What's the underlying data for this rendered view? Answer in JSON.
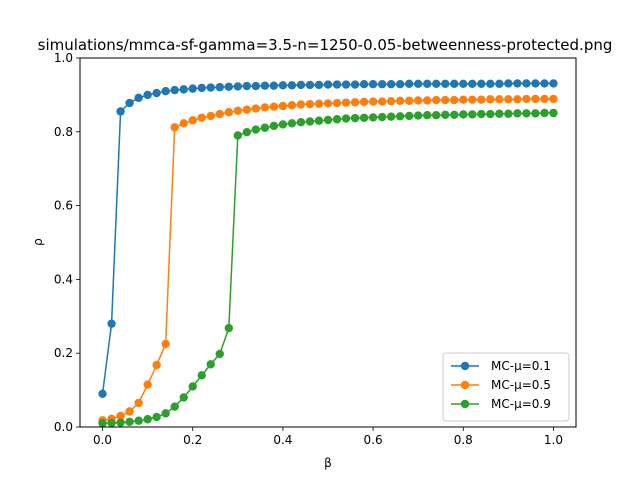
{
  "chart_data": {
    "type": "line",
    "title": "simulations/mmca-sf-gamma=3.5-n=1250-0.05-betweenness-protected.png",
    "xlabel": "β",
    "ylabel": "ρ",
    "xlim": [
      -0.05,
      1.05
    ],
    "ylim": [
      0,
      1
    ],
    "xticks": [
      0.0,
      0.2,
      0.4,
      0.6,
      0.8,
      1.0
    ],
    "xtick_labels": [
      "0.0",
      "0.2",
      "0.4",
      "0.6",
      "0.8",
      "1.0"
    ],
    "yticks": [
      0.0,
      0.2,
      0.4,
      0.6,
      0.8,
      1.0
    ],
    "ytick_labels": [
      "0.0",
      "0.2",
      "0.4",
      "0.6",
      "0.8",
      "1.0"
    ],
    "grid": false,
    "legend_position": "lower right",
    "x": [
      0,
      0.02,
      0.04,
      0.06,
      0.08,
      0.1,
      0.12,
      0.14,
      0.16,
      0.18,
      0.2,
      0.22,
      0.24,
      0.26,
      0.28,
      0.3,
      0.32,
      0.34,
      0.36,
      0.38,
      0.4,
      0.42,
      0.44,
      0.46,
      0.48,
      0.5,
      0.52,
      0.54,
      0.56,
      0.58,
      0.6,
      0.62,
      0.64,
      0.66,
      0.68,
      0.7,
      0.72,
      0.74,
      0.76,
      0.78,
      0.8,
      0.82,
      0.84,
      0.86,
      0.88,
      0.9,
      0.92,
      0.94,
      0.96,
      0.98,
      1.0
    ],
    "series": [
      {
        "name": "MC-μ=0.1",
        "color": "#1f77b4",
        "values": [
          0.09,
          0.28,
          0.855,
          0.878,
          0.892,
          0.9,
          0.905,
          0.91,
          0.913,
          0.915,
          0.917,
          0.919,
          0.92,
          0.921,
          0.922,
          0.923,
          0.924,
          0.924,
          0.925,
          0.925,
          0.926,
          0.926,
          0.927,
          0.927,
          0.927,
          0.928,
          0.928,
          0.928,
          0.928,
          0.929,
          0.929,
          0.929,
          0.929,
          0.929,
          0.93,
          0.93,
          0.93,
          0.93,
          0.93,
          0.93,
          0.93,
          0.93,
          0.93,
          0.93,
          0.93,
          0.931,
          0.931,
          0.931,
          0.931,
          0.931,
          0.931
        ]
      },
      {
        "name": "MC-μ=0.5",
        "color": "#ff7f0e",
        "values": [
          0.018,
          0.022,
          0.03,
          0.042,
          0.065,
          0.115,
          0.168,
          0.225,
          0.812,
          0.823,
          0.831,
          0.838,
          0.843,
          0.848,
          0.853,
          0.857,
          0.86,
          0.863,
          0.866,
          0.868,
          0.87,
          0.872,
          0.874,
          0.875,
          0.876,
          0.877,
          0.878,
          0.879,
          0.88,
          0.881,
          0.882,
          0.882,
          0.883,
          0.884,
          0.884,
          0.885,
          0.885,
          0.886,
          0.886,
          0.886,
          0.887,
          0.887,
          0.887,
          0.888,
          0.888,
          0.888,
          0.888,
          0.889,
          0.889,
          0.889,
          0.889
        ]
      },
      {
        "name": "MC-μ=0.9",
        "color": "#2ca02c",
        "values": [
          0.01,
          0.011,
          0.012,
          0.014,
          0.017,
          0.021,
          0.027,
          0.037,
          0.055,
          0.08,
          0.11,
          0.14,
          0.17,
          0.198,
          0.268,
          0.79,
          0.799,
          0.806,
          0.811,
          0.816,
          0.82,
          0.823,
          0.826,
          0.828,
          0.83,
          0.832,
          0.834,
          0.836,
          0.837,
          0.838,
          0.839,
          0.84,
          0.841,
          0.842,
          0.843,
          0.844,
          0.845,
          0.845,
          0.846,
          0.846,
          0.847,
          0.847,
          0.848,
          0.848,
          0.849,
          0.849,
          0.85,
          0.85,
          0.85,
          0.851,
          0.851
        ]
      }
    ]
  }
}
